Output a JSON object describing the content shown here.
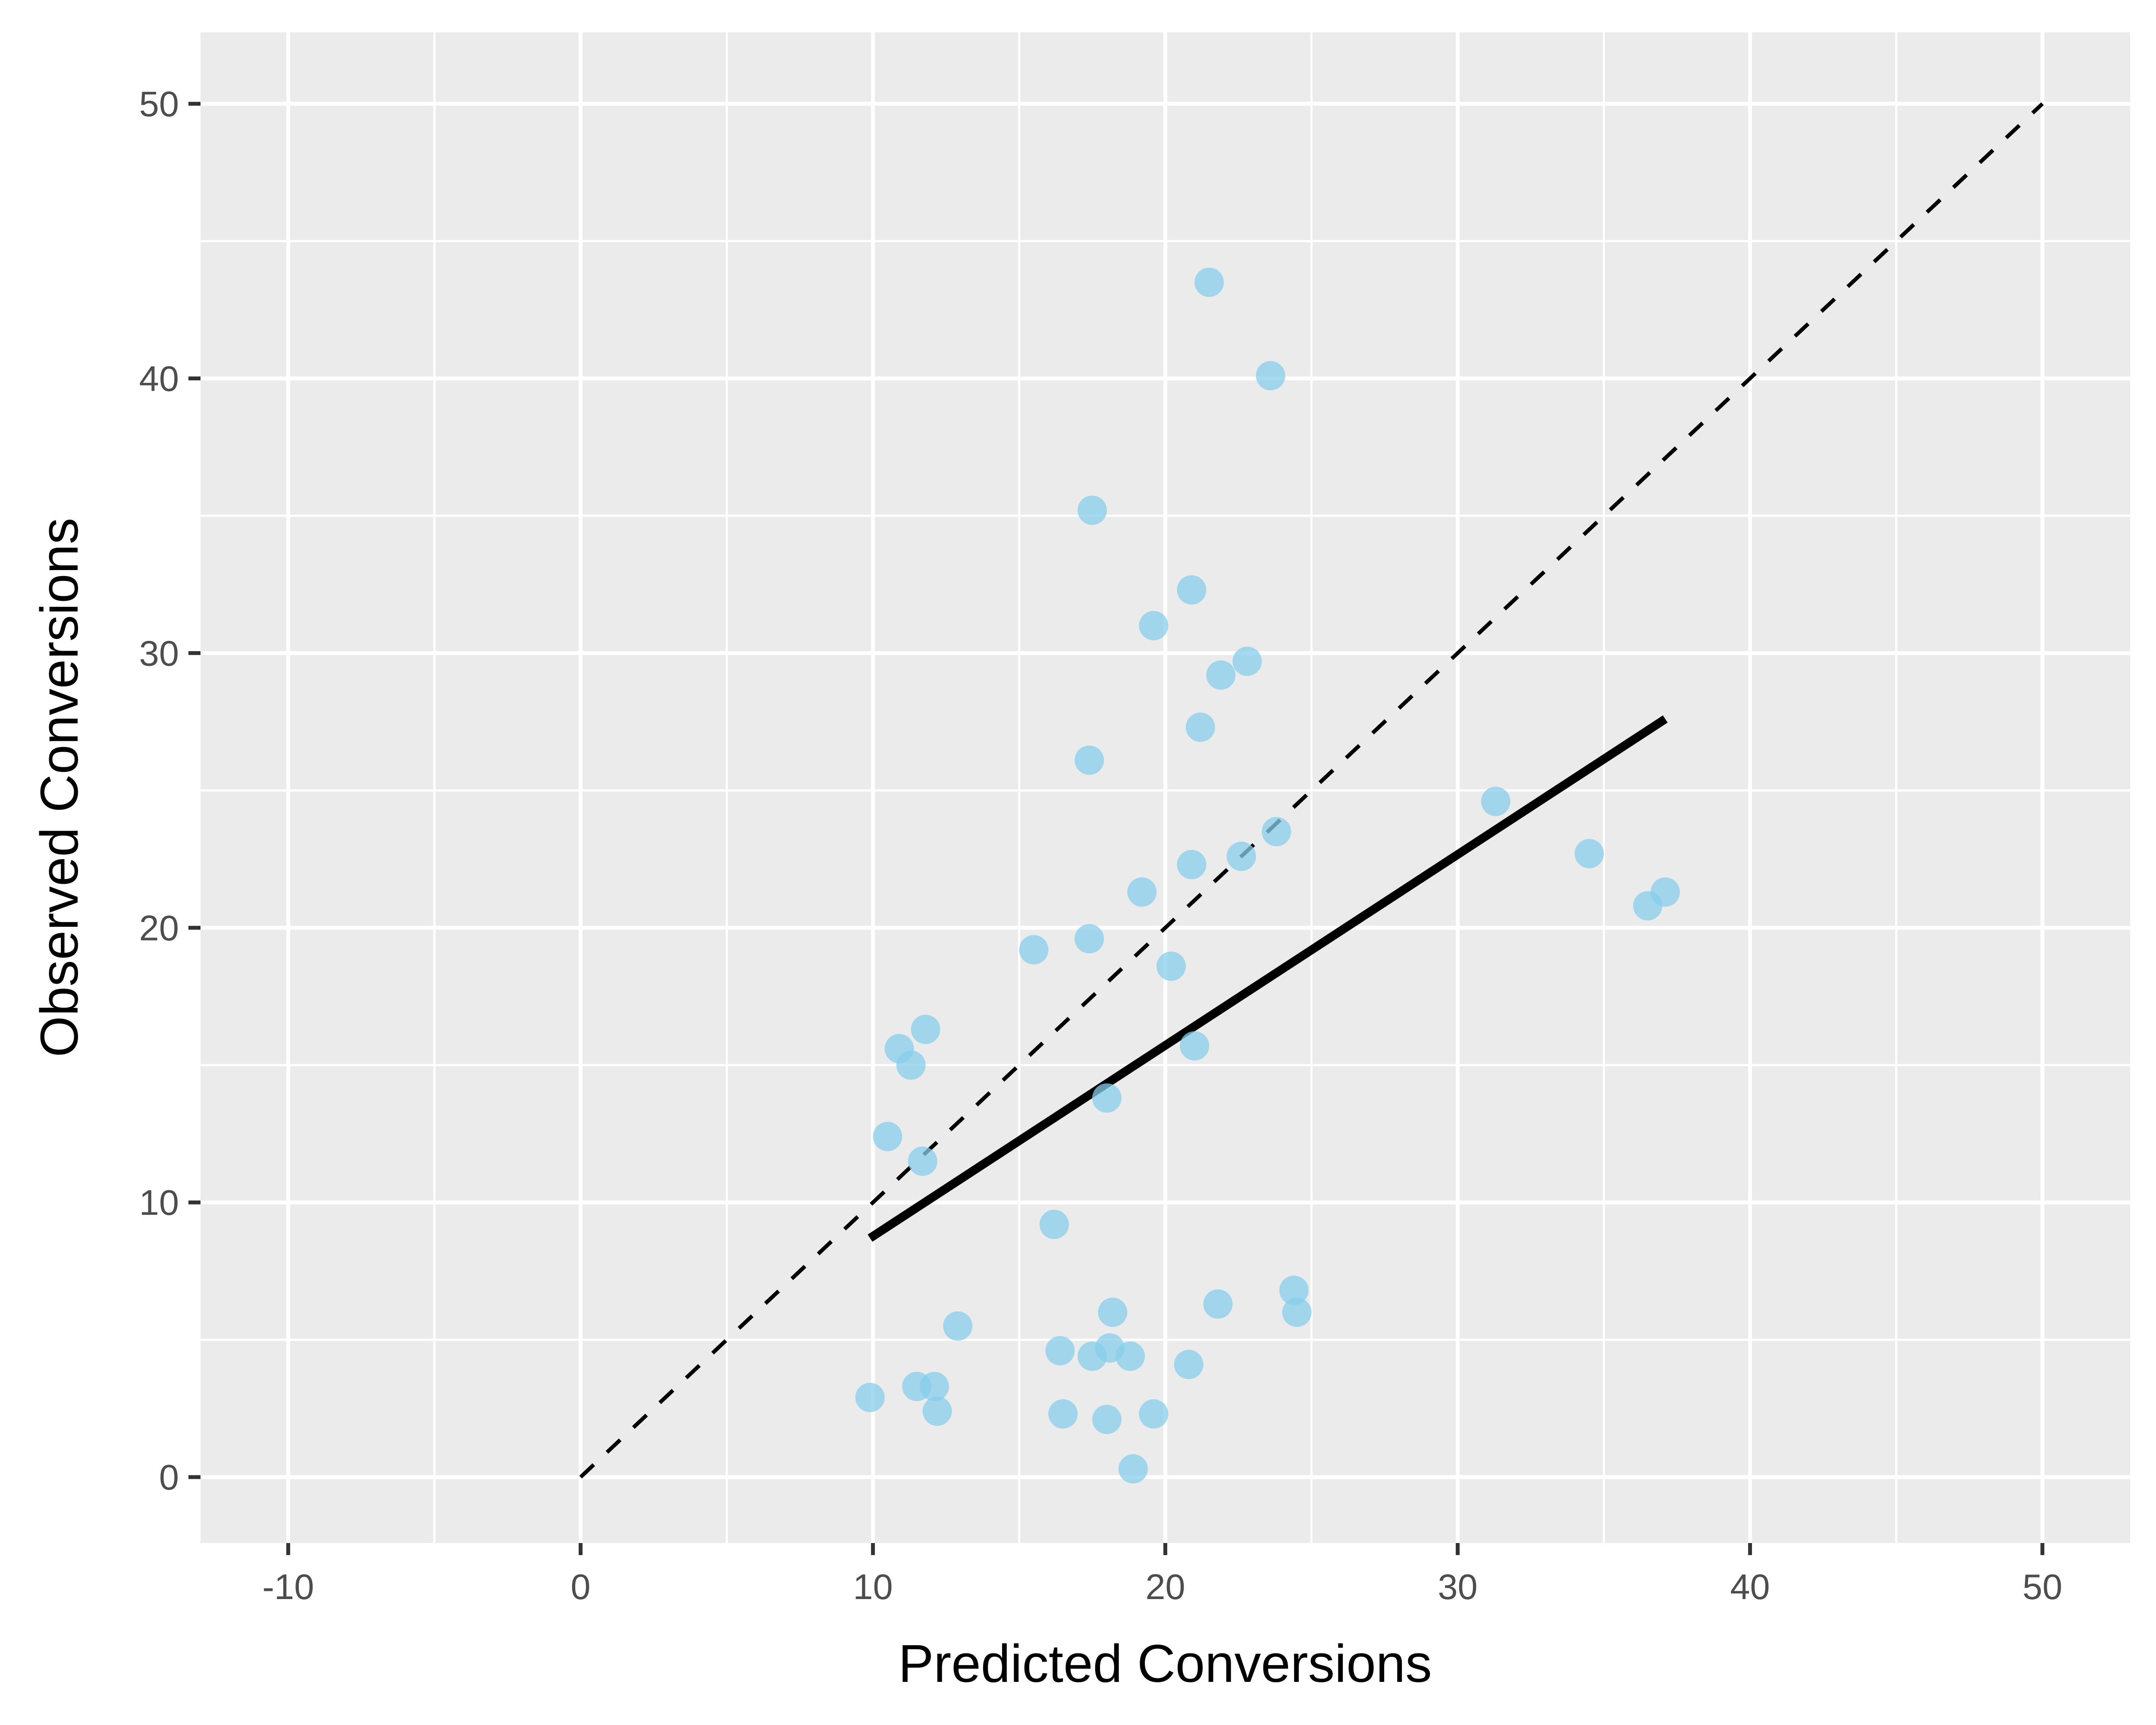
{
  "chart_data": {
    "type": "scatter",
    "title": "",
    "xlabel": "Predicted Conversions",
    "ylabel": "Observed Conversions",
    "xlim": [
      -13,
      53
    ],
    "ylim": [
      -2.4,
      52.6
    ],
    "x_ticks": [
      -10,
      0,
      10,
      20,
      30,
      40,
      50
    ],
    "x_tick_labels": [
      "-10",
      "0",
      "10",
      "20",
      "30",
      "40",
      "50"
    ],
    "y_ticks": [
      0,
      10,
      20,
      30,
      40,
      50
    ],
    "y_tick_labels": [
      "0",
      "10",
      "20",
      "30",
      "40",
      "50"
    ],
    "grid": true,
    "background": "#ebebeb",
    "grid_color": "#ffffff",
    "point_color": "#87ceeb",
    "line_color": "#000000",
    "series": [
      {
        "kind": "points",
        "x": [
          21.5,
          23.6,
          17.5,
          20.9,
          19.6,
          22.8,
          21.9,
          21.2,
          17.4,
          31.3,
          34.5,
          37.1,
          36.5,
          23.8,
          22.6,
          20.9,
          19.2,
          17.4,
          15.5,
          20.2,
          11.8,
          10.9,
          11.3,
          21.0,
          18.0,
          10.5,
          11.7,
          16.2,
          24.4,
          24.5,
          21.8,
          18.2,
          12.9,
          16.4,
          17.5,
          18.1,
          18.8,
          20.8,
          11.5,
          12.1,
          9.9,
          12.2,
          16.5,
          18.0,
          19.6,
          18.9
        ],
        "y": [
          43.5,
          40.1,
          35.2,
          32.3,
          31.0,
          29.7,
          29.2,
          27.3,
          26.1,
          24.6,
          22.7,
          21.3,
          20.8,
          23.5,
          22.6,
          22.3,
          21.3,
          19.6,
          19.2,
          18.6,
          16.3,
          15.6,
          15.0,
          15.7,
          13.8,
          12.4,
          11.5,
          9.2,
          6.8,
          6.0,
          6.3,
          6.0,
          5.5,
          4.6,
          4.4,
          4.7,
          4.4,
          4.1,
          3.3,
          3.3,
          2.9,
          2.4,
          2.3,
          2.1,
          2.3,
          0.3
        ]
      },
      {
        "kind": "identity-line",
        "x": [
          0,
          50
        ],
        "y": [
          0,
          50
        ],
        "style": "dashed"
      },
      {
        "kind": "fit-line",
        "x": [
          9.9,
          37.1
        ],
        "y": [
          8.7,
          27.6
        ],
        "style": "solid"
      }
    ]
  }
}
